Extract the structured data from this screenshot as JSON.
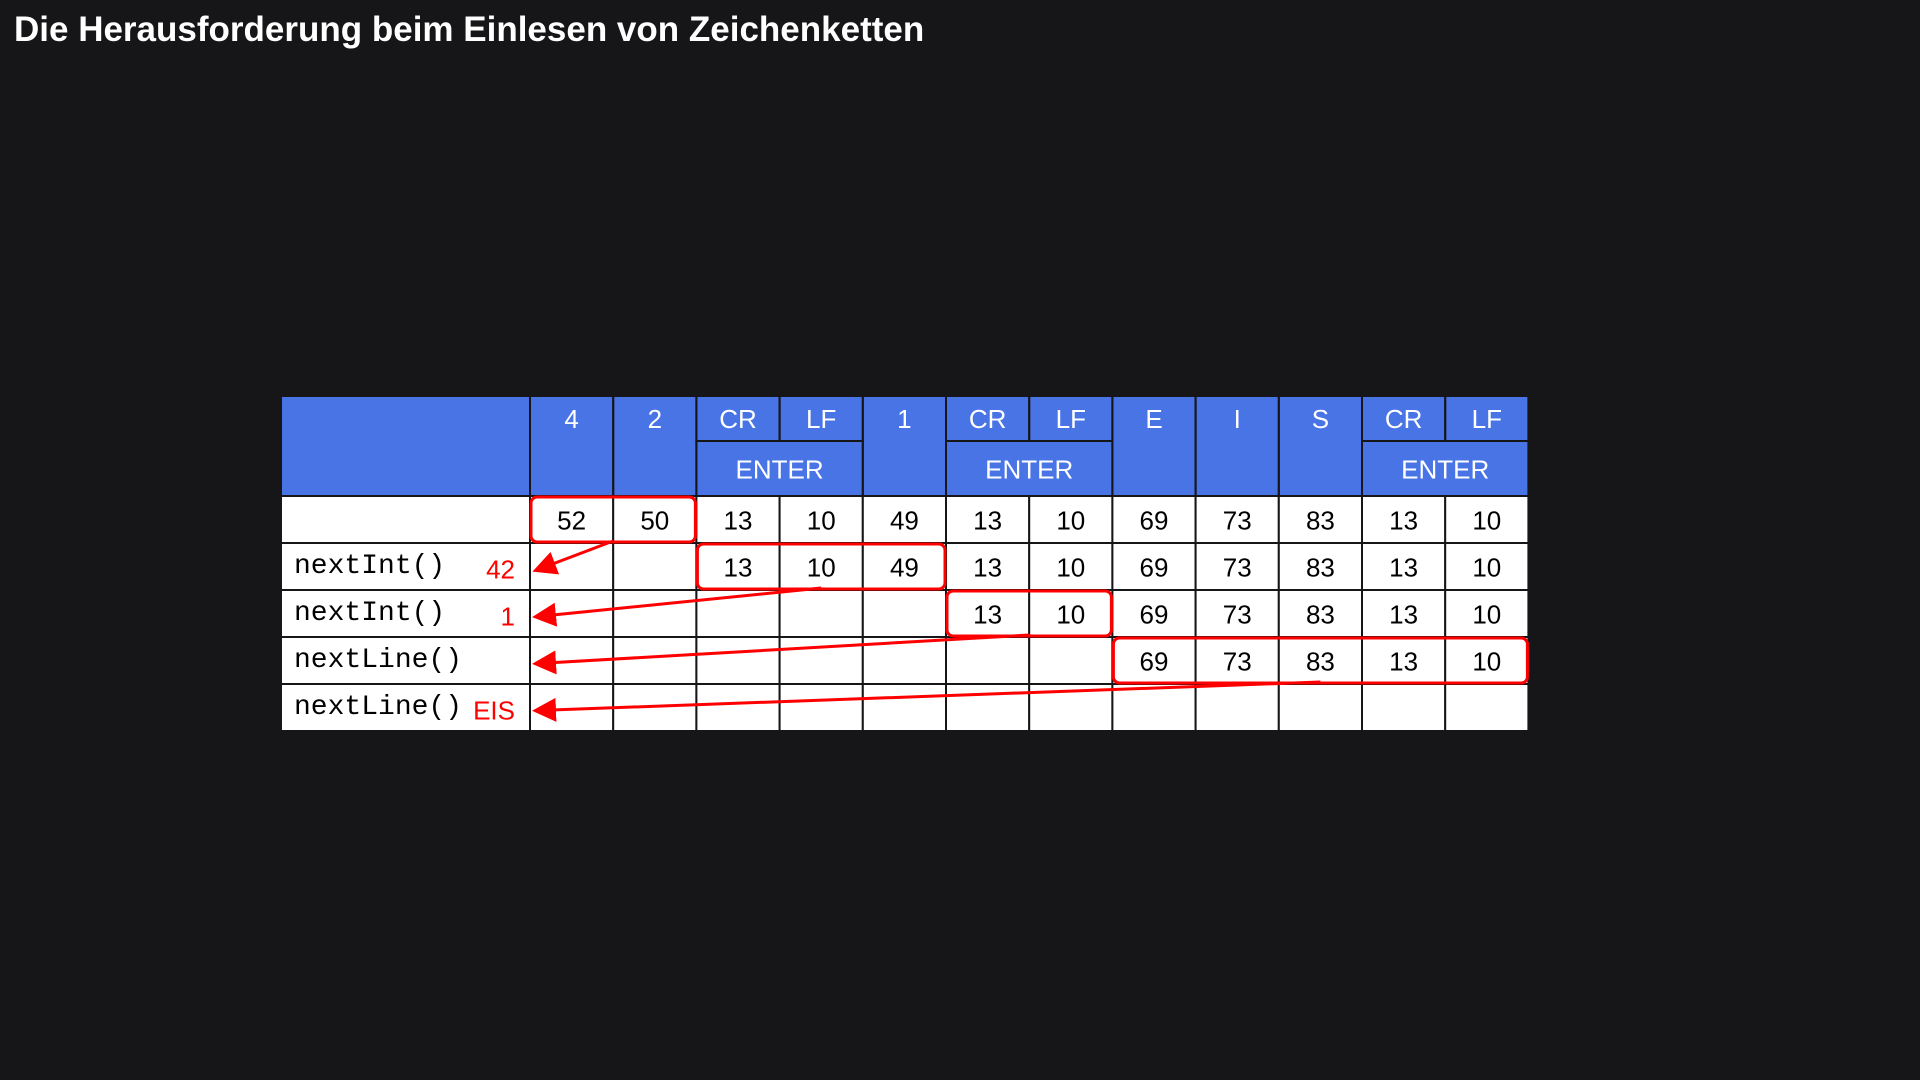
{
  "title": "Die Herausforderung beim Einlesen von Zeichenketten",
  "colors": {
    "background": "#161618",
    "header_fill": "#4874e6",
    "cell_fill": "#ffffff",
    "grid_line": "#161618",
    "highlight": "#ff0000"
  },
  "header": {
    "chars": [
      "4",
      "2",
      "CR",
      "LF",
      "1",
      "CR",
      "LF",
      "E",
      "I",
      "S",
      "CR",
      "LF"
    ],
    "groups": [
      {
        "label": "ENTER",
        "start": 2,
        "span": 2
      },
      {
        "label": "ENTER",
        "start": 5,
        "span": 2
      },
      {
        "label": "ENTER",
        "start": 10,
        "span": 2
      }
    ]
  },
  "buffer": [
    "52",
    "50",
    "13",
    "10",
    "49",
    "13",
    "10",
    "69",
    "73",
    "83",
    "13",
    "10"
  ],
  "calls": [
    {
      "method": "nextInt()",
      "result": "42",
      "remaining_from": 2,
      "consumed": [
        0,
        1
      ]
    },
    {
      "method": "nextInt()",
      "result": "1",
      "remaining_from": 5,
      "consumed": [
        2,
        4
      ]
    },
    {
      "method": "nextLine()",
      "result": "",
      "remaining_from": 7,
      "consumed": [
        5,
        6
      ]
    },
    {
      "method": "nextLine()",
      "result": "EIS",
      "remaining_from": 12,
      "consumed": [
        7,
        11
      ]
    }
  ]
}
